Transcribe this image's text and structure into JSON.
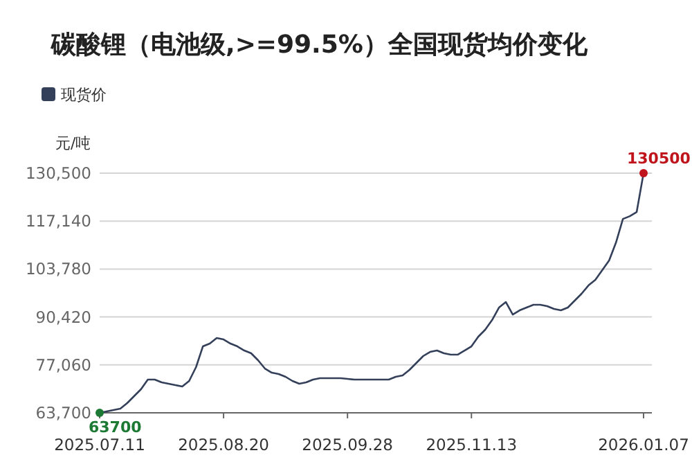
{
  "chart_data": {
    "type": "line",
    "title": "碳酸锂（电池级,>=99.5%）全国现货均价变化",
    "ylabel": "元/吨",
    "legend": "top left",
    "grid": "y",
    "marker": "none",
    "line_style": "solid",
    "categories": [
      "2025.07.11",
      null,
      null,
      null,
      null,
      null,
      null,
      null,
      null,
      null,
      null,
      null,
      null,
      null,
      null,
      null,
      null,
      null,
      "2025.08.20",
      null,
      null,
      null,
      null,
      null,
      null,
      null,
      null,
      null,
      null,
      null,
      null,
      null,
      null,
      null,
      null,
      null,
      "2025.09.28",
      null,
      null,
      null,
      null,
      null,
      null,
      null,
      null,
      null,
      null,
      null,
      null,
      null,
      null,
      null,
      null,
      null,
      "2025.11.13",
      null,
      null,
      null,
      null,
      null,
      null,
      null,
      null,
      null,
      null,
      null,
      null,
      null,
      null,
      null,
      null,
      null,
      null,
      null,
      null,
      null,
      null,
      null,
      null,
      "2026.01.07"
    ],
    "series": [
      {
        "name": "现货价",
        "color": "#34405a",
        "values": [
          63700,
          64090,
          64470,
          64860,
          66400,
          68330,
          70260,
          72960,
          72960,
          72190,
          71810,
          71420,
          71030,
          72580,
          76440,
          82230,
          83000,
          84540,
          84150,
          83000,
          82230,
          81070,
          80300,
          78370,
          76050,
          74890,
          74510,
          73740,
          72580,
          71810,
          72190,
          72960,
          73350,
          73350,
          73350,
          73350,
          73160,
          72960,
          72960,
          72960,
          72960,
          72960,
          72960,
          73740,
          74120,
          75670,
          77600,
          79530,
          80680,
          81070,
          80300,
          79910,
          79910,
          81070,
          82230,
          84930,
          86860,
          89560,
          93040,
          94580,
          91110,
          92260,
          93040,
          93810,
          93810,
          93420,
          92650,
          92260,
          93040,
          94970,
          96900,
          99210,
          100760,
          103460,
          106160,
          111180,
          117740,
          118510,
          119670,
          130500
        ]
      }
    ],
    "ylim": [
      63700,
      130500
    ],
    "yticks": [
      {
        "value": 63700,
        "label": "63,700"
      },
      {
        "value": 77060,
        "label": "77,060"
      },
      {
        "value": 90420,
        "label": "90,420"
      },
      {
        "value": 103780,
        "label": "103,780"
      },
      {
        "value": 117140,
        "label": "117,140"
      },
      {
        "value": 130500,
        "label": "130,500"
      }
    ],
    "annotations": [
      {
        "text": "63700",
        "x": "2025.07.11",
        "y": 63700
      },
      {
        "text": "130500",
        "x": "2026.01.07",
        "y": 130500
      }
    ]
  }
}
